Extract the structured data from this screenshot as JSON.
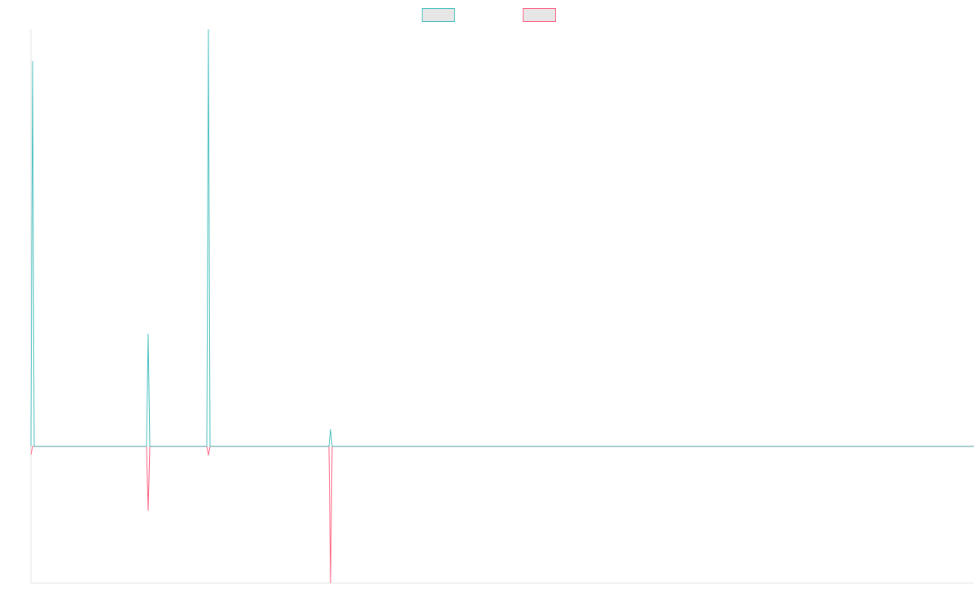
{
  "chart_data": {
    "type": "line",
    "title": "",
    "xlabel": "",
    "ylabel": "",
    "grid": false,
    "legend_position": "top-center",
    "x": [
      0,
      1,
      2,
      3,
      4,
      5,
      6,
      7,
      8,
      9,
      10,
      11,
      12,
      13,
      14,
      15,
      16,
      17,
      18,
      19,
      20,
      21,
      22,
      23,
      24,
      25,
      26,
      27,
      28,
      29,
      30,
      31,
      32,
      33,
      34,
      35,
      36,
      37,
      38,
      39,
      40,
      41,
      42,
      43,
      44,
      45,
      46,
      47,
      48,
      49,
      50,
      51,
      52,
      53,
      54,
      55,
      56,
      57,
      58,
      59,
      60,
      61,
      62,
      63,
      64,
      65,
      66,
      67,
      68,
      69,
      70,
      71,
      72,
      73,
      74,
      75,
      76,
      77,
      78,
      79,
      80,
      81,
      82,
      83,
      84,
      85,
      86,
      87,
      88,
      89,
      90,
      91,
      92,
      93,
      94,
      95,
      96,
      97,
      98,
      99,
      100,
      101,
      102,
      103,
      104,
      105,
      106,
      107,
      108,
      109,
      110,
      111,
      112,
      113,
      114,
      115,
      116,
      117,
      118,
      119,
      120,
      121,
      122,
      123,
      124,
      125,
      126,
      127,
      128,
      129,
      130,
      131,
      132,
      133,
      134,
      135,
      136,
      137,
      138,
      139,
      140,
      141,
      142,
      143,
      144,
      145,
      146,
      147,
      148,
      149,
      150,
      151,
      152,
      153,
      154,
      155,
      156,
      157,
      158,
      159,
      160,
      161,
      162,
      163,
      164,
      165,
      166,
      167,
      168,
      169,
      170,
      171,
      172,
      173,
      174,
      175,
      176,
      177,
      178,
      179,
      180,
      181,
      182,
      183,
      184,
      185,
      186,
      187,
      188,
      189,
      190,
      191,
      192,
      193,
      194,
      195,
      196,
      197,
      198,
      199,
      200,
      201,
      202,
      203,
      204,
      205,
      206,
      207,
      208,
      209,
      210,
      211,
      212,
      213,
      214,
      215,
      216,
      217,
      218,
      219,
      220,
      221,
      222,
      223,
      224,
      225,
      226,
      227,
      228,
      229,
      230,
      231,
      232,
      233,
      234,
      235,
      236,
      237,
      238,
      239,
      240,
      241,
      242,
      243,
      244,
      245,
      246,
      247,
      248,
      249,
      250,
      251,
      252,
      253,
      254,
      255,
      256,
      257,
      258,
      259,
      260,
      261,
      262,
      263,
      264,
      265,
      266,
      267,
      268,
      269,
      270,
      271,
      272,
      273,
      274,
      275,
      276,
      277,
      278,
      279,
      280,
      281,
      282,
      283,
      284,
      285,
      286,
      287,
      288,
      289,
      290,
      291,
      292,
      293,
      294,
      295,
      296,
      297,
      298,
      299,
      300,
      301,
      302,
      303,
      304,
      305,
      306,
      307,
      308,
      309,
      310,
      311,
      312,
      313,
      314,
      315,
      316,
      317,
      318,
      319,
      320,
      321,
      322,
      323,
      324,
      325,
      326,
      327,
      328,
      329,
      330,
      331,
      332,
      333,
      334,
      335,
      336,
      337,
      338,
      339,
      340,
      341,
      342,
      343,
      344,
      345,
      346,
      347,
      348,
      349,
      350,
      351,
      352,
      353,
      354,
      355,
      356,
      357,
      358,
      359,
      360,
      361,
      362,
      363,
      364,
      365,
      366,
      367,
      368,
      369,
      370,
      371,
      372,
      373,
      374,
      375,
      376,
      377,
      378,
      379,
      380,
      381,
      382,
      383,
      384,
      385,
      386,
      387,
      388,
      389,
      390,
      391,
      392,
      393,
      394,
      395,
      396,
      397,
      398,
      399,
      400,
      401,
      402,
      403,
      404,
      405,
      406,
      407,
      408,
      409,
      410,
      411,
      412,
      413,
      414,
      415,
      416,
      417,
      418,
      419,
      420,
      421,
      422,
      423,
      424,
      425,
      426,
      427,
      428,
      429,
      430,
      431,
      432,
      433,
      434,
      435,
      436,
      437,
      438,
      439,
      440,
      441,
      442,
      443,
      444,
      445,
      446,
      447,
      448,
      449,
      450,
      451,
      452,
      453,
      454,
      455,
      456,
      457,
      458,
      459,
      460,
      461,
      462,
      463,
      464,
      465,
      466,
      467,
      468,
      469,
      470,
      471,
      472,
      473,
      474,
      475,
      476,
      477,
      478,
      479,
      480,
      481,
      482,
      483,
      484,
      485,
      486,
      487,
      488,
      489,
      490,
      491,
      492,
      493,
      494,
      495,
      496,
      497,
      498,
      499,
      500,
      501,
      502,
      503,
      504,
      505,
      506,
      507,
      508,
      509,
      510,
      511,
      512,
      513,
      514,
      515,
      516,
      517,
      518,
      519,
      520,
      521,
      522,
      523,
      524,
      525,
      526,
      527,
      528,
      529,
      530,
      531,
      532,
      533,
      534,
      535,
      536,
      537,
      538,
      539,
      540,
      541,
      542,
      543,
      544,
      545,
      546,
      547,
      548,
      549,
      550,
      551,
      552,
      553,
      554,
      555,
      556,
      557,
      558,
      559,
      560,
      561,
      562,
      563,
      564,
      565,
      566,
      567,
      568,
      569,
      570,
      571,
      572,
      573,
      574,
      575,
      576,
      577,
      578,
      579
    ],
    "xlim": [
      0,
      579
    ],
    "ylim": [
      -168,
      512
    ],
    "series": [
      {
        "name": "",
        "color": "#4bc0c0",
        "fill": "#e6e6e6",
        "points": [
          [
            0,
            0
          ],
          [
            1,
            473
          ],
          [
            2,
            0
          ],
          [
            71,
            0
          ],
          [
            72,
            138
          ],
          [
            73,
            0
          ],
          [
            108,
            0
          ],
          [
            109,
            512
          ],
          [
            110,
            0
          ],
          [
            183,
            0
          ],
          [
            184,
            21
          ],
          [
            185,
            0
          ],
          [
            579,
            0
          ]
        ]
      },
      {
        "name": "",
        "color": "#ff6384",
        "fill": "#e6e6e6",
        "points": [
          [
            0,
            -10
          ],
          [
            1,
            0
          ],
          [
            71,
            0
          ],
          [
            72,
            -79
          ],
          [
            73,
            0
          ],
          [
            108,
            0
          ],
          [
            109,
            -11
          ],
          [
            110,
            0
          ],
          [
            183,
            0
          ],
          [
            184,
            -168
          ],
          [
            185,
            0
          ],
          [
            579,
            0
          ]
        ]
      }
    ]
  }
}
